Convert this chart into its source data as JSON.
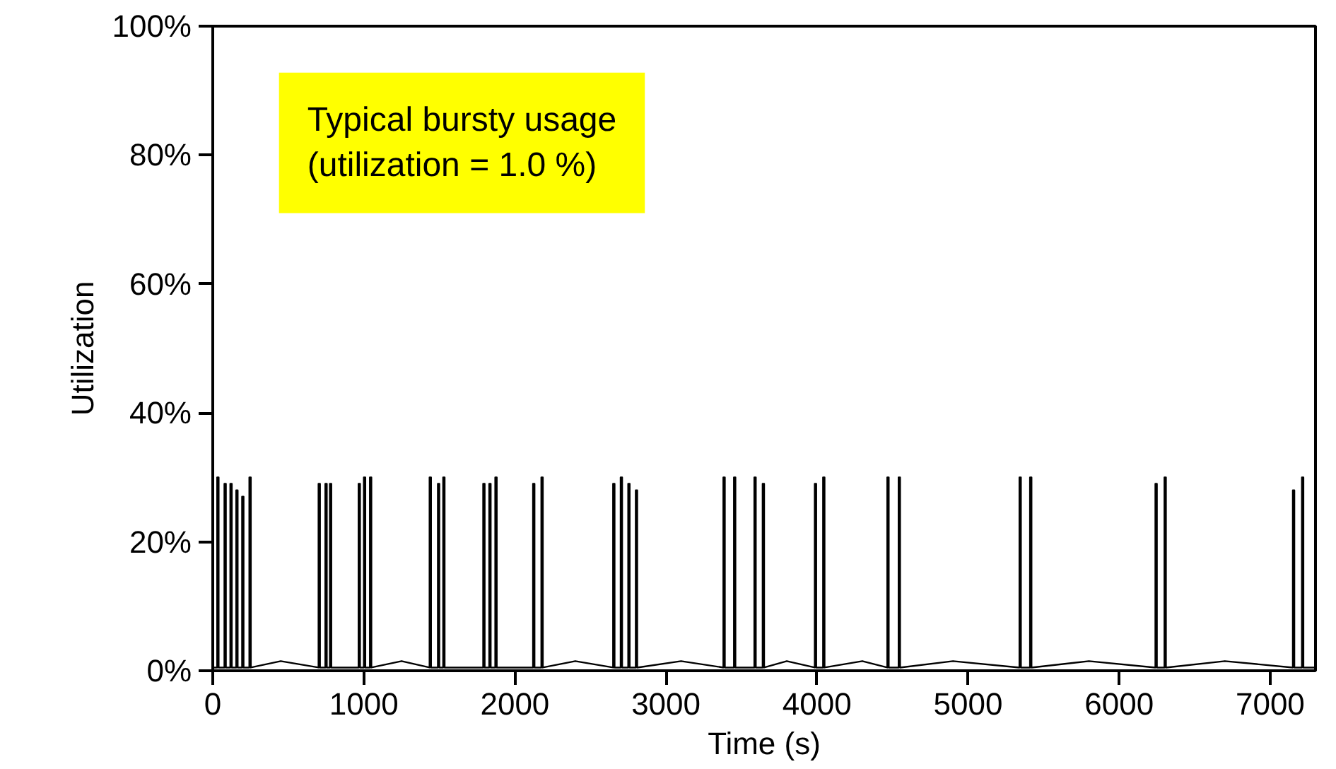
{
  "chart_data": {
    "type": "line",
    "xlabel": "Time (s)",
    "ylabel": "Utilization",
    "annotations": [
      "Typical bursty usage\n(utilization = 1.0 %)"
    ],
    "xlim": [
      0,
      7300
    ],
    "ylim": [
      0,
      100
    ],
    "xticks": [
      0,
      1000,
      2000,
      3000,
      4000,
      5000,
      6000,
      7000
    ],
    "yticks": [
      {
        "value": 0,
        "label": "0%"
      },
      {
        "value": 20,
        "label": "20%"
      },
      {
        "value": 40,
        "label": "40%"
      },
      {
        "value": 60,
        "label": "60%"
      },
      {
        "value": 80,
        "label": "80%"
      },
      {
        "value": 100,
        "label": "100%"
      }
    ],
    "grid": false,
    "marker": "none",
    "line_style": "solid",
    "series": [
      {
        "color": "#000000",
        "x": [
          0,
          29,
          29,
          39,
          39,
          77,
          77,
          87,
          87,
          116,
          116,
          126,
          126,
          155,
          155,
          165,
          165,
          194,
          194,
          204,
          204,
          242,
          242,
          252,
          252,
          450,
          700,
          700,
          710,
          710,
          745,
          745,
          755,
          755,
          775,
          775,
          785,
          785,
          965,
          965,
          975,
          975,
          1000,
          1000,
          1010,
          1010,
          1040,
          1040,
          1050,
          1050,
          1250,
          1435,
          1435,
          1445,
          1445,
          1490,
          1490,
          1500,
          1500,
          1525,
          1525,
          1535,
          1535,
          1790,
          1790,
          1800,
          1800,
          1830,
          1830,
          1840,
          1840,
          1870,
          1870,
          1880,
          1880,
          2120,
          2120,
          2130,
          2130,
          2175,
          2175,
          2185,
          2185,
          2400,
          2650,
          2650,
          2660,
          2660,
          2700,
          2700,
          2710,
          2710,
          2750,
          2750,
          2760,
          2760,
          2800,
          2800,
          2810,
          2810,
          3100,
          3380,
          3380,
          3390,
          3390,
          3450,
          3450,
          3460,
          3460,
          3585,
          3585,
          3595,
          3595,
          3640,
          3640,
          3650,
          3650,
          3800,
          3985,
          3985,
          3995,
          3995,
          4040,
          4040,
          4050,
          4050,
          4300,
          4465,
          4465,
          4475,
          4475,
          4540,
          4540,
          4550,
          4550,
          4900,
          5340,
          5340,
          5350,
          5350,
          5410,
          5410,
          5420,
          5420,
          5800,
          6240,
          6240,
          6250,
          6250,
          6300,
          6300,
          6310,
          6310,
          6700,
          7150,
          7150,
          7160,
          7160,
          7210,
          7210,
          7220,
          7220,
          7300
        ],
        "values": [
          0.5,
          0.5,
          30,
          30,
          0.5,
          0.5,
          29,
          29,
          0.5,
          0.5,
          29,
          29,
          0.5,
          0.5,
          28,
          28,
          0.5,
          0.5,
          27,
          27,
          0.5,
          0.5,
          30,
          30,
          0.5,
          1.5,
          0.5,
          29,
          29,
          0.5,
          0.5,
          29,
          29,
          0.5,
          0.5,
          29,
          29,
          0.5,
          0.5,
          29,
          29,
          0.5,
          0.5,
          30,
          30,
          0.5,
          0.5,
          30,
          30,
          0.5,
          1.5,
          0.5,
          30,
          30,
          0.5,
          0.5,
          29,
          29,
          0.5,
          0.5,
          30,
          30,
          0.5,
          0.5,
          29,
          29,
          0.5,
          0.5,
          29,
          29,
          0.5,
          0.5,
          30,
          30,
          0.5,
          0.5,
          29,
          29,
          0.5,
          0.5,
          30,
          30,
          0.5,
          1.5,
          0.5,
          29,
          29,
          0.5,
          0.5,
          30,
          30,
          0.5,
          0.5,
          29,
          29,
          0.5,
          0.5,
          28,
          28,
          0.5,
          1.5,
          0.5,
          30,
          30,
          0.5,
          0.5,
          30,
          30,
          0.5,
          0.5,
          30,
          30,
          0.5,
          0.5,
          29,
          29,
          0.5,
          1.5,
          0.5,
          29,
          29,
          0.5,
          0.5,
          30,
          30,
          0.5,
          1.5,
          0.5,
          30,
          30,
          0.5,
          0.5,
          30,
          30,
          0.5,
          1.5,
          0.5,
          30,
          30,
          0.5,
          0.5,
          30,
          30,
          0.5,
          1.5,
          0.5,
          29,
          29,
          0.5,
          0.5,
          30,
          30,
          0.5,
          1.5,
          0.5,
          28,
          28,
          0.5,
          0.5,
          30,
          30,
          0.5,
          0.5
        ]
      }
    ]
  }
}
